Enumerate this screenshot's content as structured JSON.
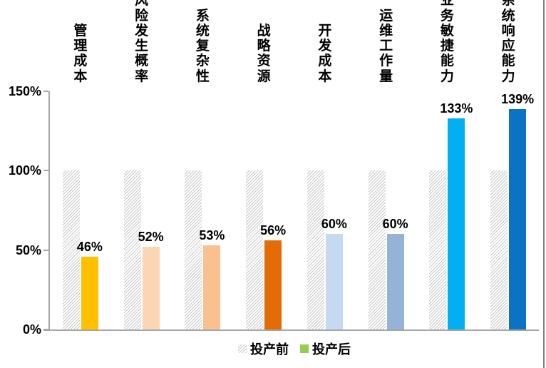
{
  "chart_data": {
    "type": "bar",
    "title": "",
    "categories": [
      "管理成本",
      "风险发生概率",
      "系统复杂性",
      "战略资源",
      "开发成本",
      "运维工作量",
      "业务敏捷能力",
      "系统响应能力"
    ],
    "series": [
      {
        "name": "投产前",
        "pattern": "diagonal-hatch",
        "values": [
          100,
          100,
          100,
          100,
          100,
          100,
          100,
          100
        ]
      },
      {
        "name": "投产后",
        "values": [
          46,
          52,
          53,
          56,
          60,
          60,
          133,
          139
        ],
        "data_labels": [
          "46%",
          "52%",
          "53%",
          "56%",
          "60%",
          "60%",
          "133%",
          "139%"
        ],
        "bar_colors": [
          "#FFC000",
          "#FCD5B4",
          "#FAC090",
          "#E36C09",
          "#C5D9F1",
          "#95B3D7",
          "#00B0F0",
          "#0B72C4"
        ]
      }
    ],
    "xlabel": "",
    "ylabel": "",
    "ylim": [
      0,
      150
    ],
    "y_ticks": [
      {
        "label": "0%",
        "value": 0
      },
      {
        "label": "50%",
        "value": 50
      },
      {
        "label": "100%",
        "value": 100
      },
      {
        "label": "150%",
        "value": 150
      }
    ],
    "grid": false,
    "legend": {
      "position": "bottom",
      "items": [
        {
          "label": "投产前",
          "swatch": "diagonal-hatch"
        },
        {
          "label": "投产后",
          "swatch": "solid",
          "color": "#92D050"
        }
      ]
    }
  },
  "colors": {
    "background": "#FFFFFF",
    "axis": "#A6A6A6",
    "hatch_line": "#C8C8C8",
    "hatch_bg": "#FFFFFF",
    "text": "#000000",
    "frame_border": "#808080"
  }
}
